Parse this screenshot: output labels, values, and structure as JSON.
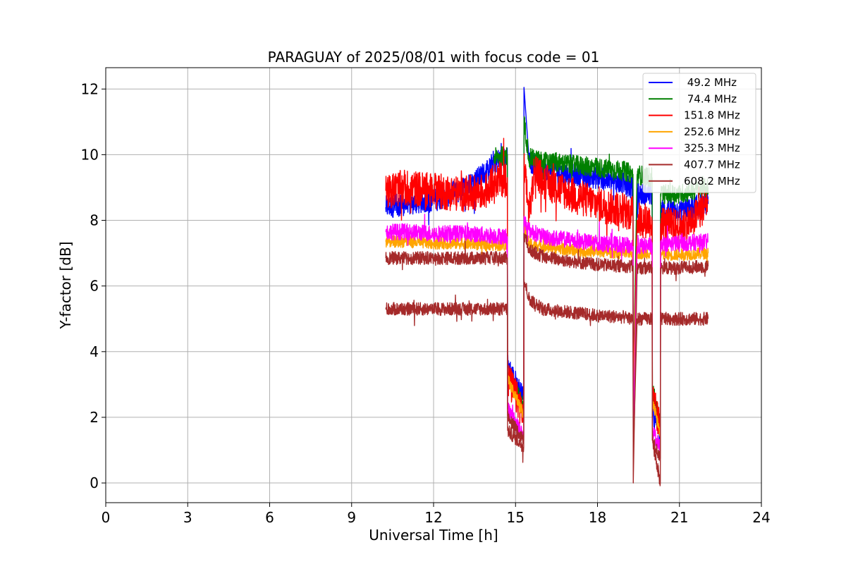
{
  "chart_data": {
    "type": "line",
    "title": "PARAGUAY of 2025/08/01 with focus code = 01",
    "xlabel": "Universal Time [h]",
    "ylabel": "Y-factor [dB]",
    "xlim": [
      0,
      24
    ],
    "ylim": [
      -0.6,
      12.65
    ],
    "xticks": [
      "0",
      "3",
      "6",
      "9",
      "12",
      "15",
      "18",
      "21",
      "24"
    ],
    "yticks": [
      "0",
      "2",
      "4",
      "6",
      "8",
      "10",
      "12"
    ],
    "grid": true,
    "legend_position": "top-right",
    "series": [
      {
        "name": " 49.2 MHz",
        "color": "#0000ff",
        "noise": 0.35,
        "points": [
          [
            10.25,
            8.4
          ],
          [
            11.0,
            8.5
          ],
          [
            12.0,
            8.6
          ],
          [
            13.0,
            8.9
          ],
          [
            13.5,
            9.2
          ],
          [
            14.0,
            9.5
          ],
          [
            14.2,
            9.8
          ],
          [
            14.7,
            9.9
          ],
          [
            14.71,
            3.6
          ],
          [
            15.3,
            2.55
          ],
          [
            15.31,
            12.05
          ],
          [
            15.5,
            9.8
          ],
          [
            16.0,
            9.6
          ],
          [
            17.0,
            9.4
          ],
          [
            18.0,
            9.3
          ],
          [
            19.0,
            9.1
          ],
          [
            19.3,
            8.95
          ],
          [
            19.31,
            1.5
          ],
          [
            19.45,
            8.8
          ],
          [
            20.0,
            8.8
          ],
          [
            20.01,
            2.0
          ],
          [
            20.3,
            1.7
          ],
          [
            20.31,
            8.3
          ],
          [
            21.0,
            8.3
          ],
          [
            21.3,
            8.3
          ],
          [
            21.5,
            8.4
          ],
          [
            22.05,
            8.5
          ]
        ]
      },
      {
        "name": " 74.4 MHz",
        "color": "#008000",
        "noise": 0.3,
        "points": [
          [
            14.2,
            9.9
          ],
          [
            14.7,
            10.0
          ],
          [
            14.71,
            3.3
          ],
          [
            15.3,
            2.3
          ],
          [
            15.31,
            11.0
          ],
          [
            15.5,
            9.9
          ],
          [
            16.0,
            9.8
          ],
          [
            17.0,
            9.7
          ],
          [
            18.0,
            9.6
          ],
          [
            19.0,
            9.5
          ],
          [
            19.3,
            9.4
          ],
          [
            19.31,
            2.8
          ],
          [
            19.45,
            9.4
          ],
          [
            20.0,
            9.3
          ],
          [
            20.01,
            2.9
          ],
          [
            20.3,
            1.7
          ],
          [
            20.31,
            8.8
          ],
          [
            21.0,
            8.8
          ],
          [
            21.5,
            8.9
          ],
          [
            22.05,
            9.0
          ]
        ]
      },
      {
        "name": "151.8 MHz",
        "color": "#ff0000",
        "noise": 0.55,
        "points": [
          [
            10.25,
            8.9
          ],
          [
            11.0,
            9.0
          ],
          [
            12.0,
            8.9
          ],
          [
            13.0,
            8.8
          ],
          [
            14.0,
            8.9
          ],
          [
            14.2,
            9.2
          ],
          [
            14.7,
            9.3
          ],
          [
            14.71,
            3.2
          ],
          [
            15.3,
            2.1
          ],
          [
            15.31,
            9.6
          ],
          [
            15.5,
            8.2
          ],
          [
            15.7,
            9.6
          ],
          [
            16.0,
            9.2
          ],
          [
            17.0,
            8.8
          ],
          [
            18.0,
            8.5
          ],
          [
            19.0,
            8.3
          ],
          [
            19.3,
            8.2
          ],
          [
            19.31,
            2.7
          ],
          [
            19.45,
            8.0
          ],
          [
            20.0,
            8.0
          ],
          [
            20.01,
            2.6
          ],
          [
            20.3,
            1.6
          ],
          [
            20.31,
            7.9
          ],
          [
            21.0,
            7.8
          ],
          [
            21.5,
            8.0
          ],
          [
            22.05,
            8.6
          ]
        ]
      },
      {
        "name": "252.6 MHz",
        "color": "#ffa500",
        "noise": 0.18,
        "points": [
          [
            10.25,
            7.35
          ],
          [
            11.0,
            7.35
          ],
          [
            12.0,
            7.3
          ],
          [
            13.0,
            7.3
          ],
          [
            14.0,
            7.25
          ],
          [
            14.7,
            7.25
          ],
          [
            14.71,
            3.2
          ],
          [
            15.3,
            2.05
          ],
          [
            15.31,
            7.8
          ],
          [
            15.5,
            7.3
          ],
          [
            16.0,
            7.2
          ],
          [
            17.0,
            7.1
          ],
          [
            18.0,
            7.05
          ],
          [
            19.0,
            7.0
          ],
          [
            19.3,
            7.0
          ],
          [
            19.31,
            2.6
          ],
          [
            19.45,
            7.0
          ],
          [
            20.0,
            7.0
          ],
          [
            20.01,
            2.5
          ],
          [
            20.3,
            1.5
          ],
          [
            20.31,
            6.95
          ],
          [
            21.0,
            6.95
          ],
          [
            22.05,
            7.0
          ]
        ]
      },
      {
        "name": "325.3 MHz",
        "color": "#ff00ff",
        "noise": 0.25,
        "points": [
          [
            10.25,
            7.65
          ],
          [
            11.0,
            7.65
          ],
          [
            12.0,
            7.6
          ],
          [
            13.0,
            7.6
          ],
          [
            14.0,
            7.55
          ],
          [
            14.7,
            7.5
          ],
          [
            14.71,
            2.25
          ],
          [
            15.3,
            1.4
          ],
          [
            15.31,
            8.0
          ],
          [
            15.5,
            7.7
          ],
          [
            16.0,
            7.5
          ],
          [
            17.0,
            7.4
          ],
          [
            18.0,
            7.3
          ],
          [
            19.0,
            7.25
          ],
          [
            19.3,
            7.2
          ],
          [
            19.31,
            1.5
          ],
          [
            19.45,
            7.2
          ],
          [
            20.0,
            7.25
          ],
          [
            20.01,
            1.6
          ],
          [
            20.3,
            1.0
          ],
          [
            20.31,
            7.3
          ],
          [
            21.0,
            7.3
          ],
          [
            22.05,
            7.35
          ]
        ]
      },
      {
        "name": "407.7 MHz",
        "color": "#a52a2a",
        "noise": 0.2,
        "points": [
          [
            10.25,
            6.85
          ],
          [
            11.0,
            6.85
          ],
          [
            12.0,
            6.85
          ],
          [
            13.0,
            6.85
          ],
          [
            14.0,
            6.85
          ],
          [
            14.7,
            6.85
          ],
          [
            14.71,
            2.05
          ],
          [
            15.3,
            1.3
          ],
          [
            15.31,
            7.6
          ],
          [
            15.5,
            7.1
          ],
          [
            16.0,
            6.9
          ],
          [
            17.0,
            6.75
          ],
          [
            18.0,
            6.65
          ],
          [
            19.0,
            6.6
          ],
          [
            19.3,
            6.6
          ],
          [
            19.31,
            0.0
          ],
          [
            19.45,
            6.55
          ],
          [
            20.0,
            6.55
          ],
          [
            20.01,
            1.3
          ],
          [
            20.3,
            0.75
          ],
          [
            20.31,
            6.55
          ],
          [
            21.0,
            6.55
          ],
          [
            22.05,
            6.6
          ]
        ]
      },
      {
        "name": "608.2 MHz",
        "color": "#a52a2a",
        "noise": 0.2,
        "points": [
          [
            10.25,
            5.3
          ],
          [
            11.0,
            5.3
          ],
          [
            12.0,
            5.3
          ],
          [
            13.0,
            5.3
          ],
          [
            14.0,
            5.3
          ],
          [
            14.7,
            5.3
          ],
          [
            14.71,
            1.6
          ],
          [
            15.3,
            1.1
          ],
          [
            15.31,
            6.2
          ],
          [
            15.5,
            5.6
          ],
          [
            16.0,
            5.3
          ],
          [
            17.0,
            5.2
          ],
          [
            18.0,
            5.1
          ],
          [
            19.0,
            5.05
          ],
          [
            19.3,
            5.0
          ],
          [
            19.31,
            0.8
          ],
          [
            19.45,
            5.0
          ],
          [
            20.0,
            5.0
          ],
          [
            20.01,
            1.3
          ],
          [
            20.3,
            0.0
          ],
          [
            20.31,
            5.0
          ],
          [
            21.0,
            5.0
          ],
          [
            22.05,
            5.0
          ]
        ]
      }
    ]
  }
}
